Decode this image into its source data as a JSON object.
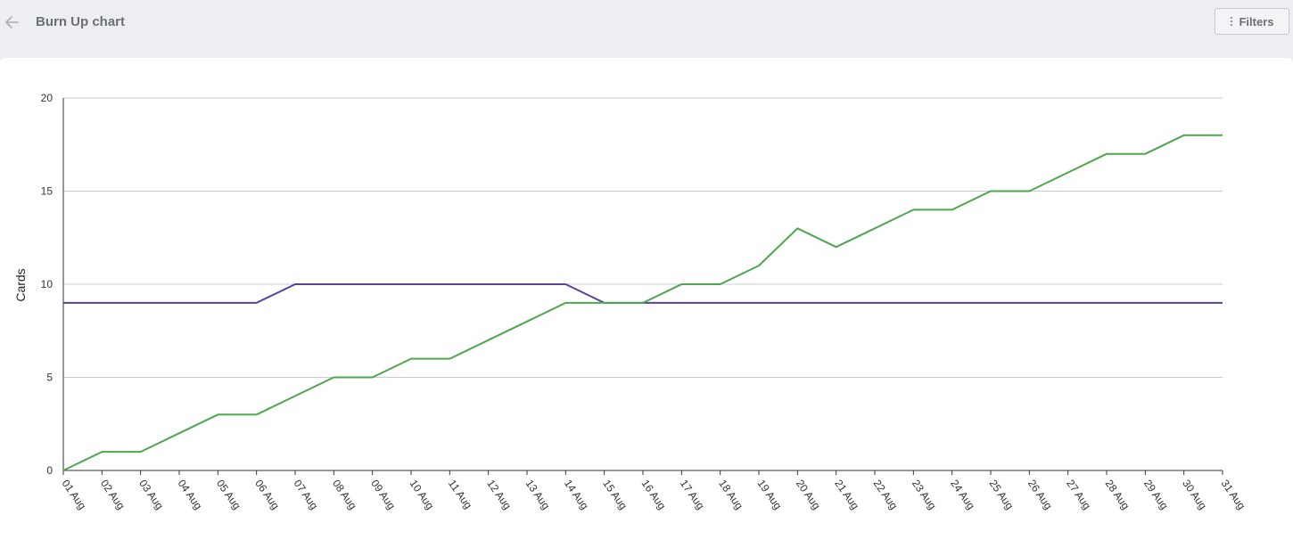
{
  "header": {
    "title": "Burn Up chart",
    "filters_label": "Filters",
    "back_icon": "arrow-left-icon",
    "filters_icon": "vertical-dots-icon"
  },
  "chart_data": {
    "type": "line",
    "title": "",
    "xlabel": "",
    "ylabel": "Cards",
    "ylim": [
      0,
      20
    ],
    "yticks": [
      0,
      5,
      10,
      15,
      20
    ],
    "grid": true,
    "categories": [
      "01 Aug",
      "02 Aug",
      "03 Aug",
      "04 Aug",
      "05 Aug",
      "06 Aug",
      "07 Aug",
      "08 Aug",
      "09 Aug",
      "10 Aug",
      "11 Aug",
      "12 Aug",
      "13 Aug",
      "14 Aug",
      "15 Aug",
      "16 Aug",
      "17 Aug",
      "18 Aug",
      "19 Aug",
      "20 Aug",
      "21 Aug",
      "22 Aug",
      "23 Aug",
      "24 Aug",
      "25 Aug",
      "26 Aug",
      "27 Aug",
      "28 Aug",
      "29 Aug",
      "30 Aug",
      "31 Aug"
    ],
    "series": [
      {
        "color": "#5b3f99",
        "values": [
          9,
          9,
          9,
          9,
          9,
          9,
          10,
          10,
          10,
          10,
          10,
          10,
          10,
          10,
          9,
          9,
          9,
          9,
          9,
          9,
          9,
          9,
          9,
          9,
          9,
          9,
          9,
          9,
          9,
          9,
          9
        ]
      },
      {
        "color": "#4ea64e",
        "values": [
          0,
          1,
          1,
          2,
          3,
          3,
          4,
          5,
          5,
          6,
          6,
          7,
          8,
          9,
          9,
          9,
          10,
          10,
          11,
          13,
          12,
          13,
          14,
          14,
          15,
          15,
          16,
          17,
          17,
          18,
          18
        ]
      }
    ]
  }
}
